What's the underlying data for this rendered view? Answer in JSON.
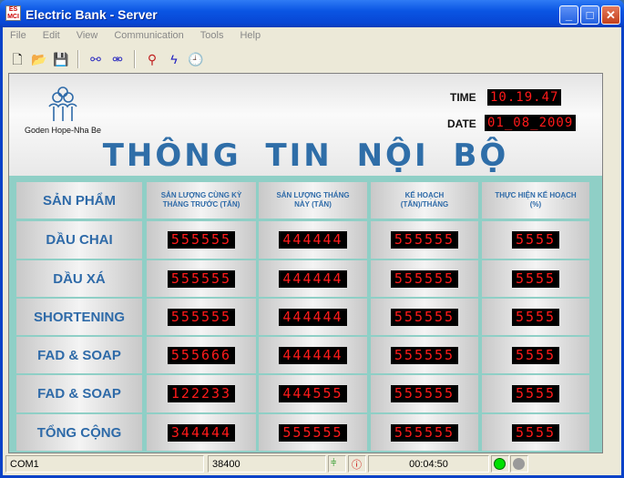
{
  "window": {
    "title": "Electric Bank - Server",
    "icon_text": "ES MCI",
    "buttons": [
      "minimize",
      "maximize",
      "close"
    ]
  },
  "menu": [
    "File",
    "Edit",
    "View",
    "Communication",
    "Tools",
    "Help"
  ],
  "toolbar": [
    "new-file-icon",
    "open-folder-icon",
    "save-icon",
    "connect-icon",
    "disconnect-icon",
    "query-icon",
    "lightning-icon",
    "clock-icon"
  ],
  "header": {
    "logo_text": "Goden Hope-Nha Be",
    "time_label": "TIME",
    "time_value": "10.19.47",
    "date_label": "DATE",
    "date_value": "01_08_2009",
    "title": "THÔNG TIN NỘI BỘ"
  },
  "table": {
    "columns": [
      "SẢN PHẨM",
      "SẢN LƯỢNG CÙNG KỲ THÁNG TRƯỚC (TẤN)",
      "SẢN LƯỢNG THÁNG NÀY (TẤN)",
      "KẾ HOẠCH (TẤN)/THÁNG",
      "THỰC HIỆN KẾ HOẠCH (%)"
    ],
    "rows": [
      {
        "name": "DẦU CHAI",
        "values": [
          "555555",
          "444444",
          "555555",
          "5555"
        ]
      },
      {
        "name": "DẦU XÁ",
        "values": [
          "555555",
          "444444",
          "555555",
          "5555"
        ]
      },
      {
        "name": "SHORTENING",
        "values": [
          "555555",
          "444444",
          "555555",
          "5555"
        ]
      },
      {
        "name": "FAD & SOAP",
        "values": [
          "555666",
          "444444",
          "555555",
          "5555"
        ]
      },
      {
        "name": "FAD & SOAP",
        "values": [
          "122233",
          "444555",
          "555555",
          "5555"
        ]
      },
      {
        "name": "TỔNG CỘNG",
        "values": [
          "344444",
          "555555",
          "555555",
          "5555"
        ]
      }
    ]
  },
  "status": {
    "port": "COM1",
    "baud": "38400",
    "elapsed": "00:04:50",
    "indicator_colors": [
      "#00e000",
      "#9a9a9a"
    ]
  }
}
